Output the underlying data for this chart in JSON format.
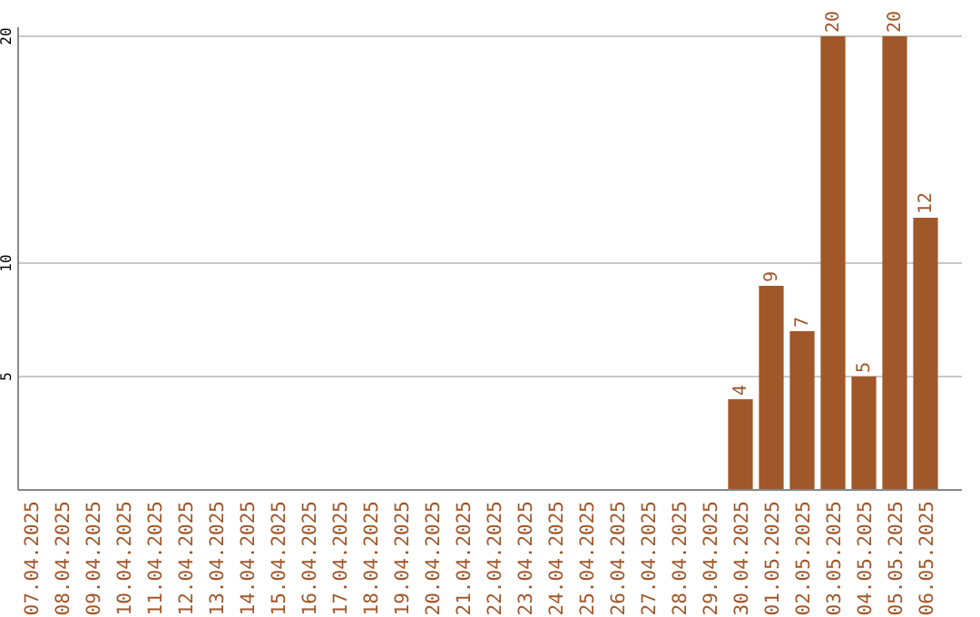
{
  "chart_data": {
    "type": "bar",
    "categories": [
      "07.04.2025",
      "08.04.2025",
      "09.04.2025",
      "10.04.2025",
      "11.04.2025",
      "12.04.2025",
      "13.04.2025",
      "14.04.2025",
      "15.04.2025",
      "16.04.2025",
      "17.04.2025",
      "18.04.2025",
      "19.04.2025",
      "20.04.2025",
      "21.04.2025",
      "22.04.2025",
      "23.04.2025",
      "24.04.2025",
      "25.04.2025",
      "26.04.2025",
      "27.04.2025",
      "28.04.2025",
      "29.04.2025",
      "30.04.2025",
      "01.05.2025",
      "02.05.2025",
      "03.05.2025",
      "04.05.2025",
      "05.05.2025",
      "06.05.2025"
    ],
    "values": [
      0,
      0,
      0,
      0,
      0,
      0,
      0,
      0,
      0,
      0,
      0,
      0,
      0,
      0,
      0,
      0,
      0,
      0,
      0,
      0,
      0,
      0,
      0,
      4,
      9,
      7,
      20,
      5,
      20,
      12
    ],
    "value_labels": [
      null,
      null,
      null,
      null,
      null,
      null,
      null,
      null,
      null,
      null,
      null,
      null,
      null,
      null,
      null,
      null,
      null,
      null,
      null,
      null,
      null,
      null,
      null,
      "4",
      "9",
      "7",
      "20",
      "5",
      "20",
      "12"
    ],
    "color": "#a0572a",
    "ylim": [
      0,
      20
    ],
    "yticks": [
      5,
      10,
      20
    ],
    "grid": "y"
  }
}
